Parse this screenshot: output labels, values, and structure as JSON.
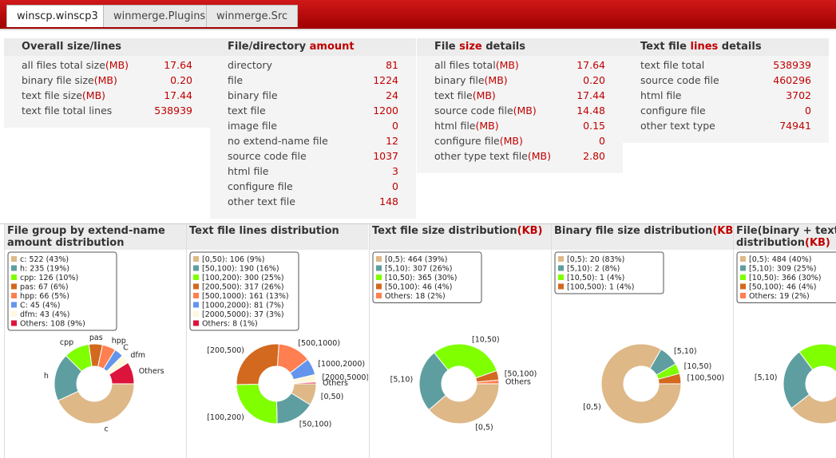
{
  "tabs": [
    "winscp.winscp3",
    "winmerge.Plugins",
    "winmerge.Src"
  ],
  "panels": [
    {
      "title": [
        {
          "text": "Overall size/lines"
        }
      ],
      "rows": [
        {
          "label": "all files total size",
          "unit": "(MB)",
          "value": "17.64"
        },
        {
          "label": "binary file size",
          "unit": "(MB)",
          "value": "0.20"
        },
        {
          "label": "text file size",
          "unit": "(MB)",
          "value": "17.44"
        },
        {
          "label": "text file total lines",
          "value": "538939"
        }
      ]
    },
    {
      "title": [
        {
          "text": "File/directory "
        },
        {
          "text": "amount",
          "red": true
        }
      ],
      "rows": [
        {
          "label": "directory",
          "value": "81"
        },
        {
          "label": "file",
          "value": "1224"
        },
        {
          "label": "binary file",
          "value": "24"
        },
        {
          "label": "text file",
          "value": "1200"
        },
        {
          "label": "image file",
          "value": "0"
        },
        {
          "label": "no extend-name file",
          "value": "12"
        },
        {
          "label": "source code file",
          "value": "1037"
        },
        {
          "label": "html file",
          "value": "3"
        },
        {
          "label": "configure file",
          "value": "0"
        },
        {
          "label": "other text file",
          "value": "148"
        }
      ]
    },
    {
      "title": [
        {
          "text": "File "
        },
        {
          "text": "size",
          "red": true
        },
        {
          "text": " details"
        }
      ],
      "rows": [
        {
          "label": "all files total",
          "unit": "(MB)",
          "value": "17.64"
        },
        {
          "label": "binary file",
          "unit": "(MB)",
          "value": "0.20"
        },
        {
          "label": "text file",
          "unit": "(MB)",
          "value": "17.44"
        },
        {
          "label": "source code file",
          "unit": "(MB)",
          "value": "14.48"
        },
        {
          "label": "html file",
          "unit": "(MB)",
          "value": "0.15"
        },
        {
          "label": "configure file",
          "unit": "(MB)",
          "value": "0"
        },
        {
          "label": "other type text file",
          "unit": "(MB)",
          "value": "2.80"
        }
      ]
    },
    {
      "title": [
        {
          "text": "Text file "
        },
        {
          "text": "lines",
          "red": true
        },
        {
          "text": " details"
        }
      ],
      "rows": [
        {
          "label": "text file total",
          "value": "538939"
        },
        {
          "label": "source code file",
          "value": "460296"
        },
        {
          "label": "html file",
          "value": "3702"
        },
        {
          "label": "configure file",
          "value": "0"
        },
        {
          "label": "other text type",
          "value": "74941"
        }
      ]
    }
  ],
  "chart_data": [
    {
      "type": "pie",
      "title": [
        {
          "text": "File group by extend-name amount distribution"
        }
      ],
      "categories": [
        "c",
        "h",
        "cpp",
        "pas",
        "hpp",
        "C",
        "dfm",
        "Others"
      ],
      "values": [
        522,
        235,
        126,
        67,
        66,
        45,
        43,
        108
      ],
      "value_labels": [
        "c: 522 (43%)",
        "h: 235 (19%)",
        "cpp: 126 (10%)",
        "pas: 67 (6%)",
        "hpp: 66 (5%)",
        "C: 45 (4%)",
        "dfm: 43 (4%)",
        "Others: 108 (9%)"
      ],
      "colors": [
        "#deb887",
        "#5f9ea0",
        "#7fff00",
        "#d2691e",
        "#ff7f50",
        "#6495ed",
        "#fff8dc",
        "#dc143c"
      ]
    },
    {
      "type": "pie",
      "title": [
        {
          "text": "Text file lines distribution"
        }
      ],
      "categories": [
        "[0,50)",
        "[50,100)",
        "[100,200)",
        "[200,500)",
        "[500,1000)",
        "[1000,2000)",
        "[2000,5000)",
        "Others"
      ],
      "values": [
        106,
        190,
        300,
        317,
        161,
        81,
        37,
        8
      ],
      "value_labels": [
        "[0,50): 106 (9%)",
        "[50,100): 190 (16%)",
        "[100,200): 300 (25%)",
        "[200,500): 317 (26%)",
        "[500,1000): 161 (13%)",
        "[1000,2000): 81 (7%)",
        "[2000,5000): 37 (3%)",
        "Others: 8 (1%)"
      ],
      "colors": [
        "#deb887",
        "#5f9ea0",
        "#7fff00",
        "#d2691e",
        "#ff7f50",
        "#6495ed",
        "#fff8dc",
        "#dc143c"
      ]
    },
    {
      "type": "pie",
      "title": [
        {
          "text": "Text file size distribution"
        },
        {
          "text": "(KB)",
          "red": true
        }
      ],
      "categories": [
        "[0,5)",
        "[5,10)",
        "[10,50)",
        "[50,100)",
        "Others"
      ],
      "values": [
        464,
        307,
        365,
        46,
        18
      ],
      "value_labels": [
        "[0,5): 464 (39%)",
        "[5,10): 307 (26%)",
        "[10,50): 365 (30%)",
        "[50,100): 46 (4%)",
        "Others: 18 (2%)"
      ],
      "colors": [
        "#deb887",
        "#5f9ea0",
        "#7fff00",
        "#d2691e",
        "#ff7f50"
      ]
    },
    {
      "type": "pie",
      "title": [
        {
          "text": "Binary file size distribution"
        },
        {
          "text": "(KB)",
          "red": true
        }
      ],
      "categories": [
        "[0,5)",
        "[5,10)",
        "[10,50)",
        "[100,500)"
      ],
      "values": [
        20,
        2,
        1,
        1
      ],
      "value_labels": [
        "[0,5): 20 (83%)",
        "[5,10): 2 (8%)",
        "[10,50): 1 (4%)",
        "[100,500): 1 (4%)"
      ],
      "colors": [
        "#deb887",
        "#5f9ea0",
        "#7fff00",
        "#d2691e"
      ]
    },
    {
      "type": "pie",
      "title": [
        {
          "text": "File(binary + text) Size distribution"
        },
        {
          "text": "(KB)",
          "red": true
        }
      ],
      "categories": [
        "[0,5)",
        "[5,10)",
        "[10,50)",
        "[50,100)",
        "Others"
      ],
      "values": [
        484,
        309,
        366,
        46,
        19
      ],
      "value_labels": [
        "[0,5): 484 (40%)",
        "[5,10): 309 (25%)",
        "[10,50): 366 (30%)",
        "[50,100): 46 (4%)",
        "Others: 19 (2%)"
      ],
      "colors": [
        "#deb887",
        "#5f9ea0",
        "#7fff00",
        "#d2691e",
        "#ff7f50"
      ]
    }
  ]
}
